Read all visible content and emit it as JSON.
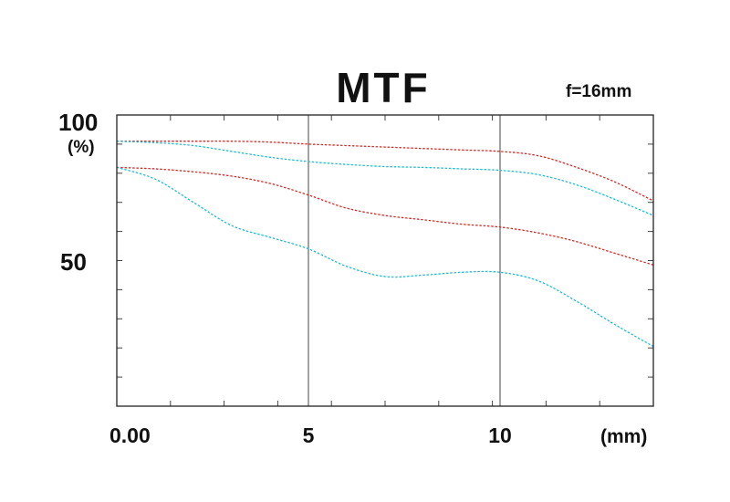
{
  "chart_data": {
    "type": "line",
    "title": "MTF",
    "subtitle": "f=16mm",
    "xlabel": "(mm)",
    "ylabel": "(%)",
    "xlim": [
      0,
      14
    ],
    "ylim": [
      0,
      100
    ],
    "x_ticks": [
      {
        "value": 0,
        "label": "0.00"
      },
      {
        "value": 5,
        "label": "5"
      },
      {
        "value": 10,
        "label": "10"
      }
    ],
    "y_ticks": [
      {
        "value": 100,
        "label": "100"
      },
      {
        "value": 50,
        "label": "50"
      }
    ],
    "grid": {
      "x_major_lines": [
        5,
        10
      ],
      "minor_step_x": 1.4,
      "minor_step_y": 10
    },
    "series": [
      {
        "color": "#d42a2a",
        "x": [
          0,
          1,
          2,
          3,
          4,
          5,
          6,
          7,
          8,
          9,
          10,
          11,
          12,
          13,
          14
        ],
        "y": [
          91,
          91,
          91,
          91,
          90.7,
          90,
          89.5,
          89,
          88.5,
          88,
          87.5,
          86,
          82,
          77,
          70.5
        ]
      },
      {
        "color": "#20bcd4",
        "x": [
          0,
          1,
          2,
          3,
          4,
          5,
          6,
          7,
          8,
          9,
          10,
          11,
          12,
          13,
          14
        ],
        "y": [
          91,
          90.5,
          89.5,
          87.5,
          85.5,
          84,
          83,
          82.3,
          82,
          81.5,
          81,
          79.5,
          76,
          71,
          65.5
        ]
      },
      {
        "color": "#d42a2a",
        "x": [
          0,
          1,
          2,
          3,
          4,
          5,
          6,
          7,
          8,
          9,
          10,
          11,
          12,
          13,
          14
        ],
        "y": [
          82,
          81.5,
          80.5,
          79,
          76.5,
          72.5,
          68,
          65.5,
          64,
          62.5,
          61.5,
          59.5,
          56.5,
          52.5,
          48.5
        ]
      },
      {
        "color": "#20bcd4",
        "x": [
          0,
          1,
          2,
          3,
          4,
          5,
          6,
          7,
          8,
          9,
          10,
          11,
          12,
          13,
          14
        ],
        "y": [
          82,
          78,
          70,
          62,
          58,
          54,
          48,
          44.5,
          45,
          46,
          46,
          43,
          36,
          28,
          20.5
        ]
      }
    ]
  }
}
